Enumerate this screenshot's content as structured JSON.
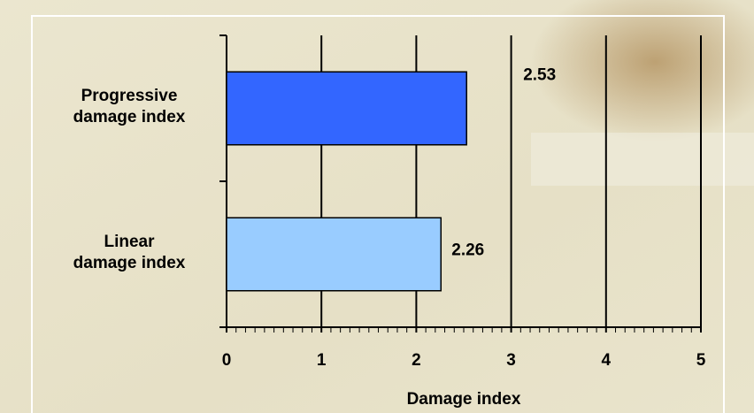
{
  "chart_data": {
    "type": "hbar",
    "categories": [
      "Progressive\ndamage index",
      "Linear\ndamage index"
    ],
    "series": [
      {
        "name": null,
        "colors": [
          "#3366ff",
          "#99ccff"
        ],
        "values": [
          2.53,
          2.26
        ],
        "value_labels": [
          "2.53",
          "2.26"
        ]
      }
    ],
    "x_label": "Damage index",
    "xlim": [
      0,
      5
    ],
    "xticks": [
      0,
      1,
      2,
      3,
      4,
      5
    ],
    "grid": true
  }
}
